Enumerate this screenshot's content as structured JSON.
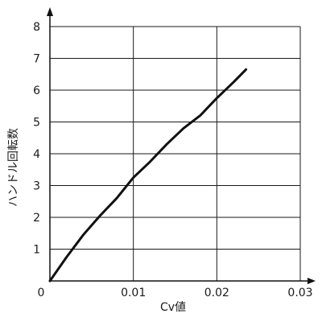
{
  "chart_data": {
    "type": "line",
    "title": "",
    "xlabel": "Cv値",
    "ylabel": "ハンドル回転数",
    "xlim": [
      0,
      0.03
    ],
    "ylim": [
      0,
      8
    ],
    "x_ticks": [
      "0.01",
      "0.02",
      "0.03"
    ],
    "y_ticks": [
      "1",
      "2",
      "3",
      "4",
      "5",
      "6",
      "7",
      "8"
    ],
    "origin_label": "0",
    "grid": true,
    "legend": "none",
    "series": [
      {
        "x": [
          0,
          0.002,
          0.004,
          0.006,
          0.008,
          0.01,
          0.012,
          0.014,
          0.016,
          0.018,
          0.02,
          0.022,
          0.0235
        ],
        "y": [
          0,
          0.75,
          1.45,
          2.05,
          2.6,
          3.25,
          3.75,
          4.3,
          4.8,
          5.2,
          5.75,
          6.25,
          6.65
        ]
      }
    ],
    "colors": {
      "line": "#111111",
      "grid": "#1a1a1a",
      "axis": "#111111"
    }
  }
}
